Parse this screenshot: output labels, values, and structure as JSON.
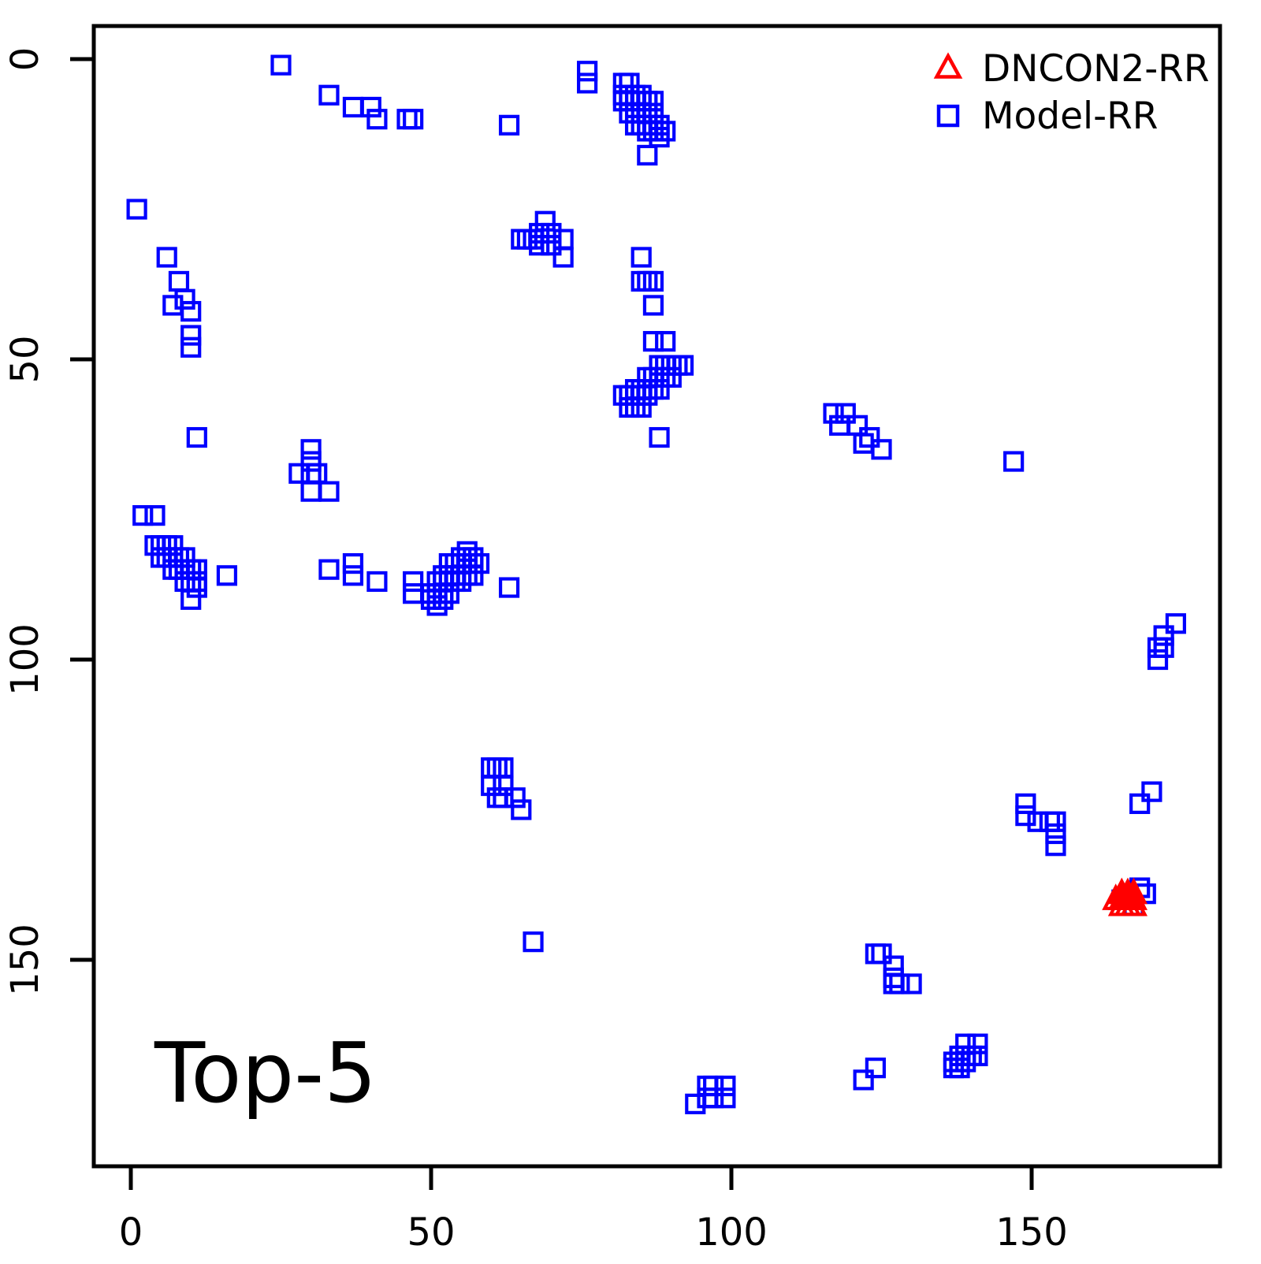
{
  "title": "Top-5",
  "legend": {
    "position": "topright",
    "items": [
      {
        "label": "DNCON2-RR",
        "marker": "open-triangle-up",
        "color": "#FF0000"
      },
      {
        "label": "Model-RR",
        "marker": "open-square",
        "color": "#0000FF"
      }
    ]
  },
  "axes": {
    "x_tick_labels": [
      "0",
      "50",
      "100",
      "150"
    ],
    "y_tick_labels": [
      "0",
      "50",
      "100",
      "150"
    ]
  },
  "chart_data": {
    "type": "scatter",
    "title": "Top-5",
    "xlabel": "",
    "ylabel": "",
    "x_ticks": [
      0,
      50,
      100,
      150
    ],
    "y_ticks": [
      0,
      50,
      100,
      150
    ],
    "xlim": [
      -6,
      181
    ],
    "ylim": [
      -5,
      184
    ],
    "y_axis_reversed": true,
    "grid": false,
    "legend_position": "topright",
    "series": [
      {
        "name": "Model-RR",
        "marker": "square",
        "color": "#0000FF",
        "points": [
          [
            25,
            1
          ],
          [
            33,
            6
          ],
          [
            37,
            8
          ],
          [
            40,
            8
          ],
          [
            41,
            10
          ],
          [
            46,
            10
          ],
          [
            47,
            10
          ],
          [
            63,
            11
          ],
          [
            76,
            2
          ],
          [
            76,
            4
          ],
          [
            82,
            4
          ],
          [
            83,
            4
          ],
          [
            82,
            6
          ],
          [
            83,
            6
          ],
          [
            84,
            6
          ],
          [
            85,
            6
          ],
          [
            82,
            7
          ],
          [
            83,
            7
          ],
          [
            84,
            7
          ],
          [
            85,
            7
          ],
          [
            86,
            7
          ],
          [
            87,
            7
          ],
          [
            83,
            9
          ],
          [
            84,
            9
          ],
          [
            85,
            9
          ],
          [
            86,
            9
          ],
          [
            87,
            9
          ],
          [
            84,
            11
          ],
          [
            85,
            11
          ],
          [
            86,
            11
          ],
          [
            87,
            11
          ],
          [
            88,
            11
          ],
          [
            86,
            12
          ],
          [
            87,
            12
          ],
          [
            88,
            12
          ],
          [
            89,
            12
          ],
          [
            88,
            13
          ],
          [
            86,
            16
          ],
          [
            1,
            25
          ],
          [
            6,
            33
          ],
          [
            8,
            37
          ],
          [
            9,
            40
          ],
          [
            7,
            41
          ],
          [
            10,
            42
          ],
          [
            10,
            46
          ],
          [
            10,
            48
          ],
          [
            11,
            63
          ],
          [
            2,
            76
          ],
          [
            4,
            76
          ],
          [
            69,
            27
          ],
          [
            68,
            29
          ],
          [
            70,
            29
          ],
          [
            65,
            30
          ],
          [
            66,
            30
          ],
          [
            67,
            30
          ],
          [
            68,
            31
          ],
          [
            70,
            31
          ],
          [
            72,
            30
          ],
          [
            72,
            33
          ],
          [
            85,
            33
          ],
          [
            85,
            37
          ],
          [
            86,
            37
          ],
          [
            87,
            37
          ],
          [
            87,
            41
          ],
          [
            87,
            47
          ],
          [
            89,
            47
          ],
          [
            88,
            51
          ],
          [
            89,
            51
          ],
          [
            90,
            51
          ],
          [
            91,
            51
          ],
          [
            92,
            51
          ],
          [
            86,
            53
          ],
          [
            87,
            53
          ],
          [
            88,
            53
          ],
          [
            89,
            53
          ],
          [
            90,
            53
          ],
          [
            84,
            55
          ],
          [
            85,
            55
          ],
          [
            86,
            55
          ],
          [
            87,
            55
          ],
          [
            88,
            55
          ],
          [
            82,
            56
          ],
          [
            83,
            56
          ],
          [
            84,
            56
          ],
          [
            85,
            56
          ],
          [
            86,
            56
          ],
          [
            83,
            58
          ],
          [
            84,
            58
          ],
          [
            85,
            58
          ],
          [
            88,
            63
          ],
          [
            117,
            59
          ],
          [
            119,
            59
          ],
          [
            118,
            61
          ],
          [
            121,
            61
          ],
          [
            123,
            63
          ],
          [
            122,
            64
          ],
          [
            125,
            65
          ],
          [
            147,
            67
          ],
          [
            30,
            65
          ],
          [
            30,
            67
          ],
          [
            28,
            69
          ],
          [
            30,
            69
          ],
          [
            31,
            69
          ],
          [
            30,
            72
          ],
          [
            33,
            72
          ],
          [
            4,
            81
          ],
          [
            5,
            81
          ],
          [
            6,
            81
          ],
          [
            7,
            81
          ],
          [
            5,
            83
          ],
          [
            6,
            83
          ],
          [
            7,
            83
          ],
          [
            8,
            83
          ],
          [
            9,
            83
          ],
          [
            7,
            85
          ],
          [
            8,
            85
          ],
          [
            9,
            85
          ],
          [
            10,
            85
          ],
          [
            11,
            85
          ],
          [
            9,
            87
          ],
          [
            10,
            87
          ],
          [
            11,
            87
          ],
          [
            11,
            88
          ],
          [
            10,
            90
          ],
          [
            16,
            86
          ],
          [
            33,
            85
          ],
          [
            37,
            84
          ],
          [
            37,
            86
          ],
          [
            41,
            87
          ],
          [
            47,
            87
          ],
          [
            47,
            89
          ],
          [
            56,
            82
          ],
          [
            55,
            83
          ],
          [
            56,
            83
          ],
          [
            57,
            83
          ],
          [
            53,
            84
          ],
          [
            54,
            84
          ],
          [
            55,
            84
          ],
          [
            56,
            84
          ],
          [
            57,
            84
          ],
          [
            58,
            84
          ],
          [
            52,
            86
          ],
          [
            53,
            86
          ],
          [
            54,
            86
          ],
          [
            55,
            86
          ],
          [
            56,
            86
          ],
          [
            57,
            86
          ],
          [
            51,
            87
          ],
          [
            52,
            87
          ],
          [
            53,
            87
          ],
          [
            54,
            87
          ],
          [
            55,
            87
          ],
          [
            50,
            89
          ],
          [
            51,
            89
          ],
          [
            52,
            89
          ],
          [
            53,
            89
          ],
          [
            50,
            90
          ],
          [
            52,
            90
          ],
          [
            51,
            91
          ],
          [
            63,
            88
          ],
          [
            174,
            94
          ],
          [
            172,
            96
          ],
          [
            171,
            98
          ],
          [
            172,
            98
          ],
          [
            171,
            100
          ],
          [
            60,
            118
          ],
          [
            61,
            118
          ],
          [
            62,
            118
          ],
          [
            60,
            121
          ],
          [
            62,
            121
          ],
          [
            61,
            123
          ],
          [
            62,
            123
          ],
          [
            64,
            123
          ],
          [
            65,
            125
          ],
          [
            149,
            124
          ],
          [
            149,
            126
          ],
          [
            151,
            127
          ],
          [
            153,
            127
          ],
          [
            154,
            127
          ],
          [
            154,
            129
          ],
          [
            154,
            131
          ],
          [
            170,
            122
          ],
          [
            168,
            124
          ],
          [
            168,
            138
          ],
          [
            169,
            139
          ],
          [
            165,
            140
          ],
          [
            167,
            141
          ],
          [
            124,
            149
          ],
          [
            125,
            149
          ],
          [
            127,
            151
          ],
          [
            127,
            153
          ],
          [
            127,
            154
          ],
          [
            128,
            154
          ],
          [
            130,
            154
          ],
          [
            67,
            147
          ],
          [
            124,
            168
          ],
          [
            122,
            170
          ],
          [
            139,
            164
          ],
          [
            141,
            164
          ],
          [
            138,
            166
          ],
          [
            139,
            166
          ],
          [
            140,
            166
          ],
          [
            141,
            166
          ],
          [
            137,
            167
          ],
          [
            138,
            167
          ],
          [
            139,
            167
          ],
          [
            137,
            168
          ],
          [
            138,
            168
          ],
          [
            96,
            171
          ],
          [
            97,
            171
          ],
          [
            99,
            171
          ],
          [
            96,
            173
          ],
          [
            97,
            173
          ],
          [
            99,
            173
          ],
          [
            94,
            174
          ]
        ]
      },
      {
        "name": "DNCON2-RR",
        "marker": "triangle",
        "color": "#FF0000",
        "points": [
          [
            165,
            139
          ],
          [
            166,
            139
          ],
          [
            167,
            139
          ],
          [
            164,
            140
          ],
          [
            165,
            140
          ],
          [
            166,
            140
          ],
          [
            167,
            140
          ],
          [
            165,
            141
          ],
          [
            166,
            141
          ],
          [
            167,
            141
          ]
        ]
      }
    ]
  }
}
